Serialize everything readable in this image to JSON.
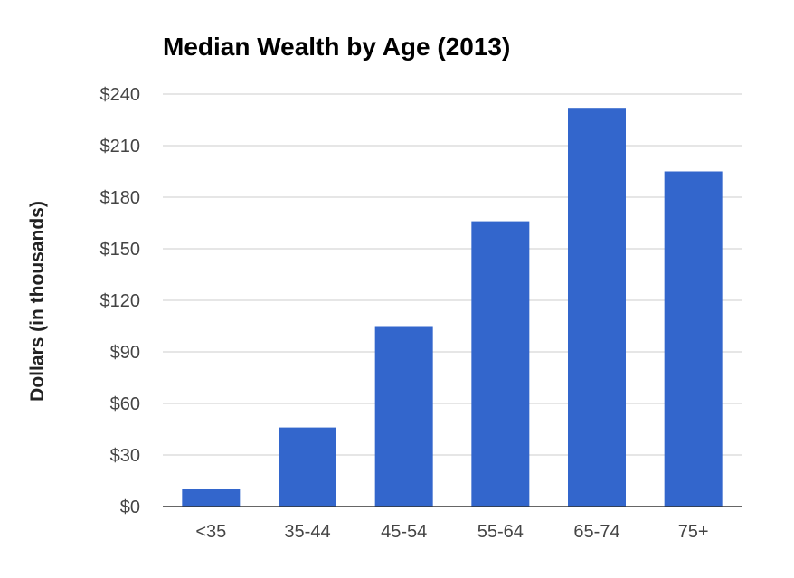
{
  "chart_data": {
    "type": "bar",
    "title": "Median Wealth by Age (2013)",
    "ylabel": "Dollars (in thousands)",
    "xlabel": "",
    "categories": [
      "<35",
      "35-44",
      "45-54",
      "55-64",
      "65-74",
      "75+"
    ],
    "values": [
      10,
      46,
      105,
      166,
      232,
      195
    ],
    "ylim": [
      0,
      240
    ],
    "yticks": [
      0,
      30,
      60,
      90,
      120,
      150,
      180,
      210,
      240
    ],
    "ytick_labels": [
      "$0",
      "$30",
      "$60",
      "$90",
      "$120",
      "$150",
      "$180",
      "$210",
      "$240"
    ],
    "bar_color": "#3366cc",
    "grid": true,
    "legend": "none"
  }
}
